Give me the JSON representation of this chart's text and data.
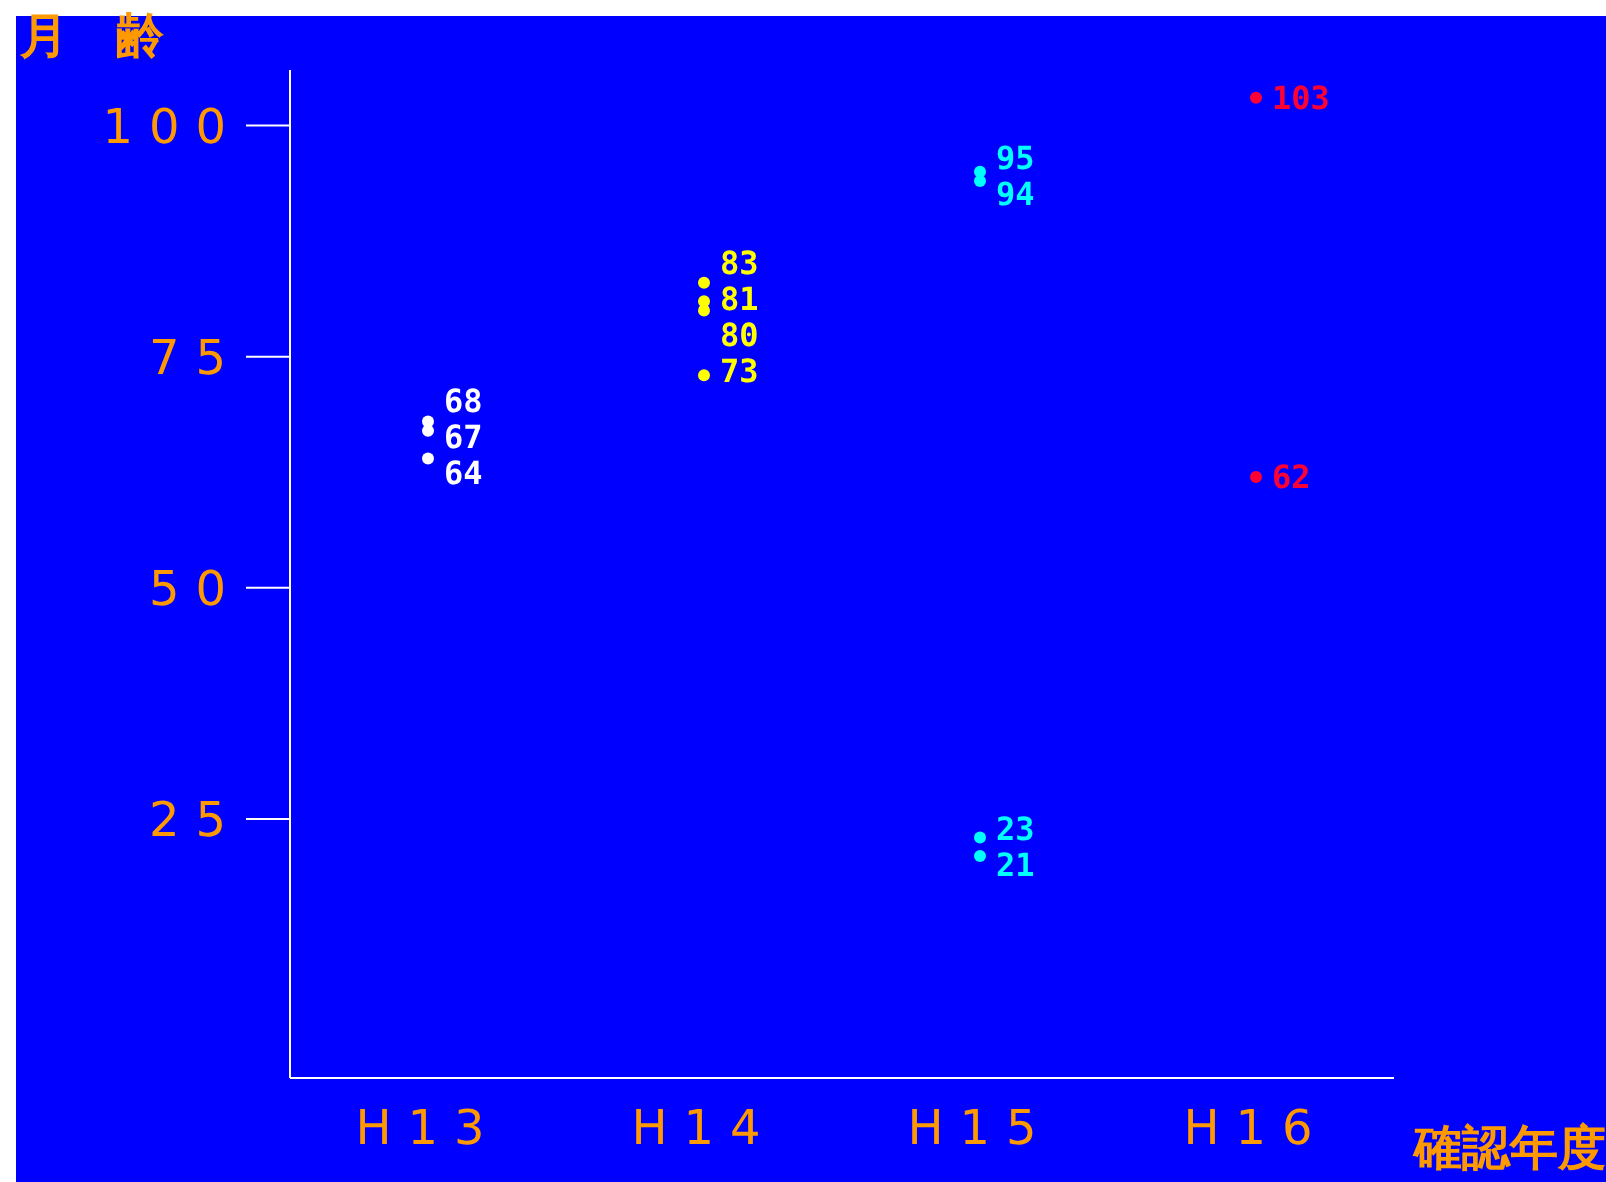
{
  "chart_data": {
    "type": "scatter",
    "xlabel": "確認年度",
    "ylabel": "月　齢",
    "categories": [
      "H13",
      "H14",
      "H15",
      "H16"
    ],
    "ylim": [
      -3,
      106
    ],
    "yticks": [
      25,
      50,
      75,
      100
    ],
    "marker": "circle",
    "data_labels": true,
    "grid": false,
    "legend": false,
    "series": [
      {
        "color": "#ffffff",
        "x": [
          "H13",
          "H13",
          "H13"
        ],
        "values": [
          68,
          67,
          64
        ]
      },
      {
        "color": "#ffff00",
        "x": [
          "H14",
          "H14",
          "H14",
          "H14"
        ],
        "values": [
          83,
          81,
          80,
          73
        ]
      },
      {
        "color": "#00ffff",
        "x": [
          "H15",
          "H15",
          "H15",
          "H15"
        ],
        "values": [
          95,
          94,
          23,
          21
        ]
      },
      {
        "color": "#ff0033",
        "x": [
          "H16",
          "H16"
        ],
        "values": [
          103,
          62
        ]
      }
    ]
  }
}
